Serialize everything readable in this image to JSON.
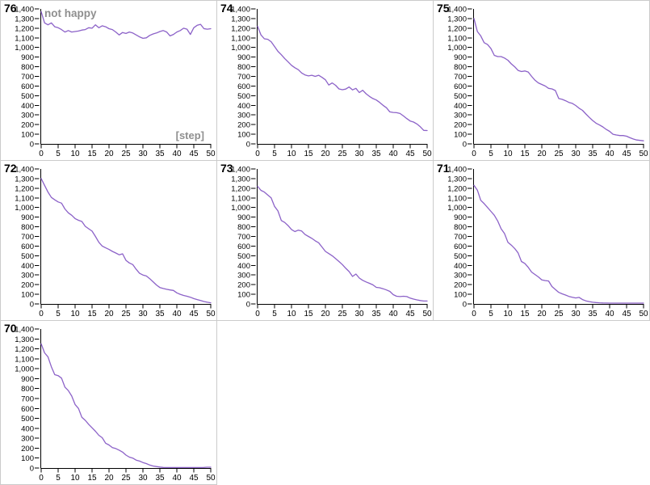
{
  "style": {
    "background": "#ffffff",
    "panel_border": "#cbcbcb",
    "line_color": "#8c62c8",
    "muted_text_color": "#8f8f8f",
    "axis_color": "#000000"
  },
  "chart_data": {
    "type": "line",
    "title": "not happy",
    "xlabel": "[step]",
    "xlim": [
      0,
      50
    ],
    "ylim": [
      0,
      1400
    ],
    "grid": false,
    "legend": null,
    "x_tick_labels": [
      "0",
      "5",
      "10",
      "15",
      "20",
      "25",
      "30",
      "35",
      "40",
      "45",
      "50"
    ],
    "y_tick_labels": [
      "1,400",
      "1,300",
      "1,200",
      "1,100",
      "1,000",
      "900",
      "800",
      "700",
      "600",
      "500",
      "400",
      "300",
      "200",
      "100",
      "0"
    ],
    "x_step_per_point": 1,
    "panels": [
      {
        "run_label": "76",
        "show_title": true,
        "values": [
          1370,
          1255,
          1235,
          1255,
          1215,
          1205,
          1185,
          1160,
          1175,
          1160,
          1165,
          1170,
          1180,
          1185,
          1205,
          1200,
          1235,
          1205,
          1225,
          1215,
          1195,
          1185,
          1160,
          1130,
          1155,
          1145,
          1160,
          1150,
          1130,
          1110,
          1095,
          1100,
          1125,
          1140,
          1150,
          1165,
          1175,
          1160,
          1120,
          1135,
          1160,
          1175,
          1200,
          1190,
          1135,
          1205,
          1230,
          1240,
          1195,
          1190,
          1195
        ]
      },
      {
        "run_label": "74",
        "show_title": false,
        "values": [
          1220,
          1130,
          1090,
          1085,
          1060,
          1010,
          960,
          925,
          885,
          850,
          815,
          790,
          770,
          735,
          715,
          705,
          712,
          700,
          712,
          690,
          665,
          610,
          632,
          608,
          570,
          562,
          568,
          590,
          560,
          576,
          532,
          556,
          520,
          492,
          470,
          455,
          430,
          400,
          375,
          332,
          326,
          324,
          315,
          290,
          262,
          237,
          226,
          206,
          177,
          140,
          138
        ]
      },
      {
        "run_label": "75",
        "show_title": false,
        "values": [
          1300,
          1165,
          1120,
          1050,
          1030,
          988,
          918,
          905,
          905,
          890,
          868,
          830,
          800,
          762,
          750,
          756,
          745,
          700,
          660,
          632,
          616,
          600,
          576,
          570,
          553,
          470,
          462,
          448,
          430,
          420,
          398,
          370,
          348,
          310,
          275,
          242,
          215,
          196,
          176,
          150,
          130,
          100,
          92,
          86,
          86,
          80,
          64,
          50,
          40,
          36,
          32
        ]
      },
      {
        "run_label": "72",
        "show_title": false,
        "values": [
          1300,
          1230,
          1160,
          1105,
          1080,
          1058,
          1045,
          985,
          945,
          920,
          885,
          868,
          855,
          805,
          780,
          755,
          700,
          640,
          600,
          582,
          565,
          545,
          528,
          510,
          520,
          452,
          425,
          408,
          360,
          318,
          300,
          290,
          262,
          230,
          196,
          170,
          160,
          152,
          145,
          140,
          115,
          100,
          88,
          80,
          70,
          55,
          45,
          35,
          25,
          18,
          12
        ]
      },
      {
        "run_label": "73",
        "show_title": false,
        "values": [
          1220,
          1178,
          1160,
          1130,
          1100,
          1012,
          965,
          865,
          845,
          812,
          772,
          750,
          765,
          756,
          720,
          700,
          680,
          655,
          635,
          590,
          545,
          522,
          500,
          470,
          440,
          408,
          370,
          335,
          285,
          310,
          268,
          245,
          228,
          214,
          198,
          172,
          168,
          158,
          145,
          130,
          96,
          80,
          76,
          80,
          76,
          60,
          50,
          42,
          35,
          30,
          30
        ]
      },
      {
        "run_label": "71",
        "show_title": false,
        "values": [
          1230,
          1180,
          1075,
          1040,
          1000,
          960,
          920,
          860,
          780,
          730,
          640,
          610,
          575,
          530,
          440,
          420,
          380,
          330,
          305,
          280,
          250,
          242,
          238,
          180,
          150,
          120,
          105,
          92,
          78,
          70,
          62,
          68,
          45,
          32,
          24,
          18,
          14,
          12,
          10,
          9,
          8,
          8,
          8,
          8,
          8,
          8,
          8,
          8,
          8,
          8,
          8
        ]
      },
      {
        "run_label": "70",
        "show_title": false,
        "values": [
          1250,
          1160,
          1120,
          1020,
          940,
          930,
          905,
          815,
          780,
          725,
          640,
          600,
          510,
          480,
          440,
          405,
          370,
          330,
          305,
          250,
          232,
          205,
          196,
          180,
          160,
          130,
          110,
          100,
          80,
          70,
          55,
          45,
          30,
          20,
          15,
          10,
          6,
          5,
          5,
          5,
          5,
          5,
          5,
          5,
          5,
          5,
          5,
          5,
          6,
          8,
          8
        ]
      }
    ]
  }
}
